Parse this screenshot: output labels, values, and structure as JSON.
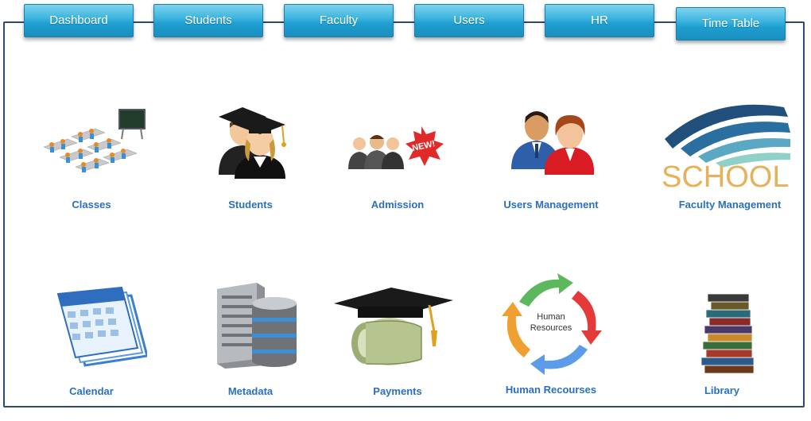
{
  "nav": {
    "tabs": [
      {
        "label": "Dashboard"
      },
      {
        "label": "Students"
      },
      {
        "label": "Faculty"
      },
      {
        "label": "Users"
      },
      {
        "label": "HR"
      },
      {
        "label": "Time Table"
      }
    ]
  },
  "modules": [
    {
      "label": "Classes",
      "icon": "classroom-icon"
    },
    {
      "label": "Students",
      "icon": "graduates-icon"
    },
    {
      "label": "Admission",
      "icon": "admission-new-icon"
    },
    {
      "label": "Users Management",
      "icon": "users-icon"
    },
    {
      "label": "Faculty Management",
      "icon": "school-logo-icon"
    },
    {
      "label": "Calendar",
      "icon": "calendar-icon"
    },
    {
      "label": "Metadata",
      "icon": "database-server-icon"
    },
    {
      "label": "Payments",
      "icon": "money-graduation-cap-icon"
    },
    {
      "label": "Human Recourses",
      "icon": "human-resources-cycle-icon"
    },
    {
      "label": "Library",
      "icon": "books-stack-icon"
    }
  ],
  "graphics": {
    "admission_badge": "NEW!",
    "school_logo_text": "SCHOOL",
    "hr_cycle_text": [
      "Human",
      "Resources"
    ]
  },
  "colors": {
    "tab_blue": "#1e9fd0",
    "frame_border": "#2f4a6e",
    "label_blue": "#2a6fc0"
  }
}
